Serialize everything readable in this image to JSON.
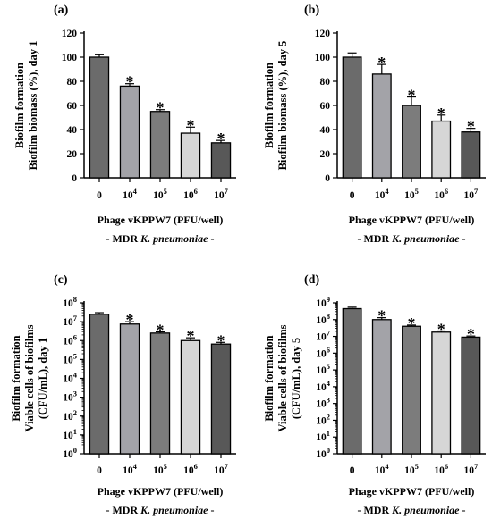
{
  "chart_data": [
    {
      "panel": "(a)",
      "type": "bar",
      "ylabel_line1": "Biofilm formation",
      "ylabel_line2": "Biofilm biomass (%), day 1",
      "xlabel": "Phage vKPPW7 (PFU/well)",
      "subtitle_pre": "- MDR ",
      "subtitle_italic": "K. pneumoniae",
      "subtitle_post": " -",
      "scale": "linear",
      "ylim": [
        0,
        120
      ],
      "yticks": [
        0,
        20,
        40,
        60,
        80,
        100,
        120
      ],
      "categories": [
        {
          "base": "0",
          "exp": ""
        },
        {
          "base": "10",
          "exp": "4"
        },
        {
          "base": "10",
          "exp": "5"
        },
        {
          "base": "10",
          "exp": "6"
        },
        {
          "base": "10",
          "exp": "7"
        }
      ],
      "values": [
        100,
        76,
        55,
        37,
        29
      ],
      "errors": [
        2,
        2,
        1.5,
        5,
        2
      ],
      "significance": [
        "",
        "*",
        "*",
        "*",
        "*"
      ],
      "bar_colors": [
        "#6b6b6b",
        "#a3a3a8",
        "#7c7c7c",
        "#d6d6d6",
        "#585858"
      ]
    },
    {
      "panel": "(b)",
      "type": "bar",
      "ylabel_line1": "Biofilm formation",
      "ylabel_line2": "Biofilm biomass (%), day 5",
      "xlabel": "Phage vKPPW7 (PFU/well)",
      "subtitle_pre": "- MDR ",
      "subtitle_italic": "K. pneumoniae",
      "subtitle_post": " -",
      "scale": "linear",
      "ylim": [
        0,
        120
      ],
      "yticks": [
        0,
        20,
        40,
        60,
        80,
        100,
        120
      ],
      "categories": [
        {
          "base": "0",
          "exp": ""
        },
        {
          "base": "10",
          "exp": "4"
        },
        {
          "base": "10",
          "exp": "5"
        },
        {
          "base": "10",
          "exp": "6"
        },
        {
          "base": "10",
          "exp": "7"
        }
      ],
      "values": [
        100,
        86,
        60,
        47,
        38
      ],
      "errors": [
        3.5,
        8,
        7,
        5,
        3
      ],
      "significance": [
        "",
        "*",
        "*",
        "*",
        "*"
      ],
      "bar_colors": [
        "#6b6b6b",
        "#a3a3a8",
        "#7c7c7c",
        "#d6d6d6",
        "#585858"
      ]
    },
    {
      "panel": "(c)",
      "type": "bar",
      "ylabel_line1": "Biofilm formation",
      "ylabel_line2": "Viable cells of biofilms",
      "ylabel_line3": "(CFU/mL), day 1",
      "xlabel": "Phage vKPPW7 (PFU/well)",
      "subtitle_pre": "- MDR ",
      "subtitle_italic": "K. pneumoniae",
      "subtitle_post": " -",
      "scale": "log",
      "ylim": [
        1,
        100000000
      ],
      "ytick_exponents": [
        0,
        1,
        2,
        3,
        4,
        5,
        6,
        7,
        8
      ],
      "categories": [
        {
          "base": "0",
          "exp": ""
        },
        {
          "base": "10",
          "exp": "4"
        },
        {
          "base": "10",
          "exp": "5"
        },
        {
          "base": "10",
          "exp": "6"
        },
        {
          "base": "10",
          "exp": "7"
        }
      ],
      "values": [
        25000000,
        7500000,
        2500000,
        1000000,
        650000
      ],
      "errors_upper": [
        30000000,
        10000000,
        2900000,
        1400000,
        800000
      ],
      "significance": [
        "",
        "*",
        "*",
        "*",
        "*"
      ],
      "bar_colors": [
        "#6b6b6b",
        "#a3a3a8",
        "#7c7c7c",
        "#d6d6d6",
        "#585858"
      ]
    },
    {
      "panel": "(d)",
      "type": "bar",
      "ylabel_line1": "Biofilm formation",
      "ylabel_line2": "Viable cells of biofilms",
      "ylabel_line3": "(CFU/mL), day 5",
      "xlabel": "Phage vKPPW7 (PFU/well)",
      "subtitle_pre": "- MDR ",
      "subtitle_italic": "K. pneumoniae",
      "subtitle_post": " -",
      "scale": "log",
      "ylim": [
        1,
        1000000000
      ],
      "ytick_exponents": [
        0,
        1,
        2,
        3,
        4,
        5,
        6,
        7,
        8,
        9
      ],
      "categories": [
        {
          "base": "0",
          "exp": ""
        },
        {
          "base": "10",
          "exp": "4"
        },
        {
          "base": "10",
          "exp": "5"
        },
        {
          "base": "10",
          "exp": "6"
        },
        {
          "base": "10",
          "exp": "7"
        }
      ],
      "values": [
        450000000,
        100000000,
        40000000,
        18000000,
        9000000
      ],
      "errors_upper": [
        550000000,
        130000000,
        47000000,
        21000000,
        10500000
      ],
      "significance": [
        "",
        "*",
        "*",
        "*",
        "*"
      ],
      "bar_colors": [
        "#6b6b6b",
        "#a3a3a8",
        "#7c7c7c",
        "#d6d6d6",
        "#585858"
      ]
    }
  ]
}
